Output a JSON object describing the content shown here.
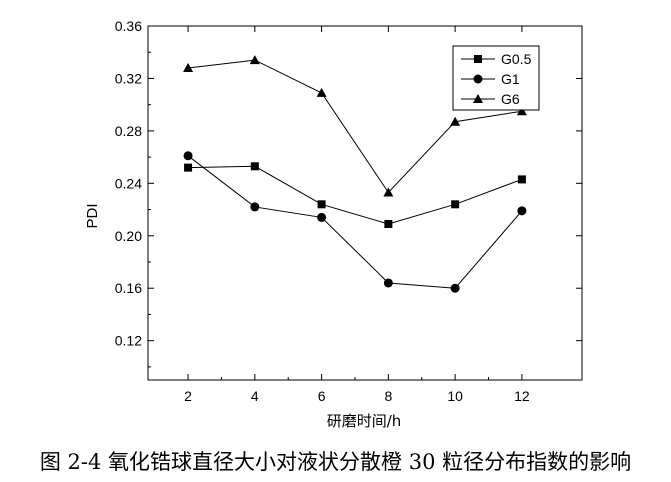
{
  "chart_data": {
    "type": "line",
    "x": [
      2,
      4,
      6,
      8,
      10,
      12
    ],
    "xlabel": "研磨时间/h",
    "ylabel": "PDI",
    "xlim": [
      0.8,
      13.8
    ],
    "ylim": [
      0.09,
      0.36
    ],
    "xticks": [
      "2",
      "4",
      "6",
      "8",
      "10",
      "12"
    ],
    "yticks": [
      "0.12",
      "0.16",
      "0.20",
      "0.24",
      "0.28",
      "0.32",
      "0.36"
    ],
    "grid": false,
    "legend_position": "top-right",
    "series": [
      {
        "name": "G0.5",
        "marker": "square",
        "values": [
          0.252,
          0.253,
          0.224,
          0.209,
          0.224,
          0.243
        ]
      },
      {
        "name": "G1",
        "marker": "circle",
        "values": [
          0.261,
          0.222,
          0.214,
          0.164,
          0.16,
          0.219
        ]
      },
      {
        "name": "G6",
        "marker": "triangle",
        "values": [
          0.328,
          0.334,
          0.309,
          0.233,
          0.287,
          0.295
        ]
      }
    ]
  },
  "caption": "图 2-4  氧化锆球直径大小对液状分散橙 30 粒径分布指数的影响"
}
